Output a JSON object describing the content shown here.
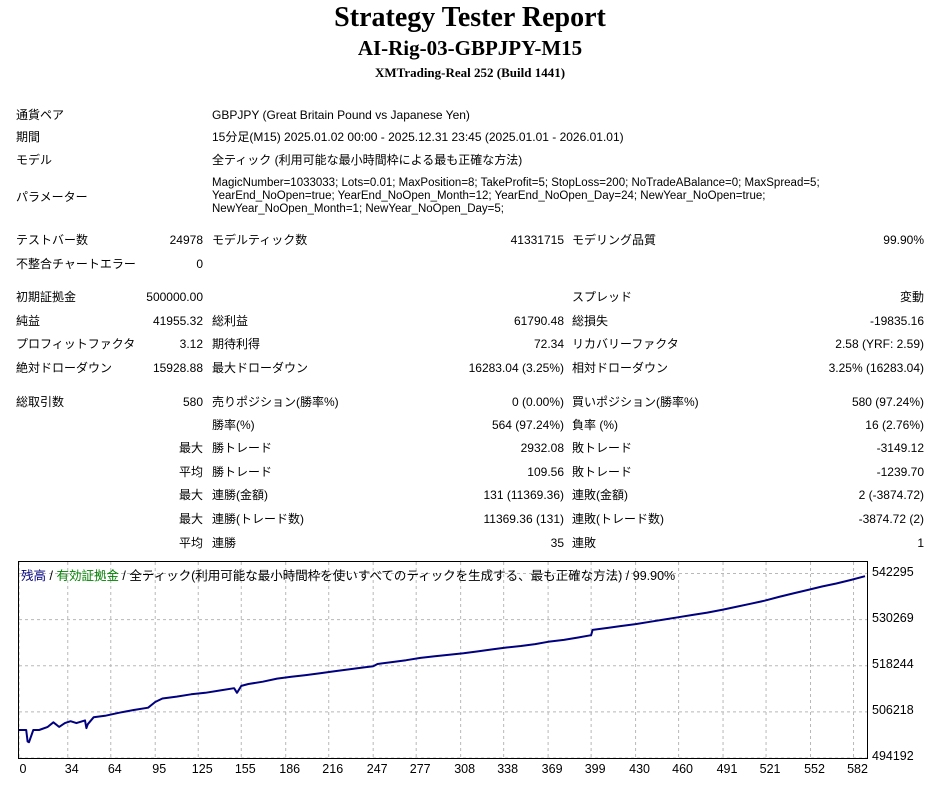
{
  "header": {
    "title": "Strategy Tester Report",
    "subtitle": "AI-Rig-03-GBPJPY-M15",
    "build": "XMTrading-Real 252 (Build 1441)"
  },
  "info": {
    "pair_label": "通貨ペア",
    "pair_value": "GBPJPY (Great Britain Pound vs Japanese Yen)",
    "period_label": "期間",
    "period_value": "15分足(M15) 2025.01.02 00:00 - 2025.12.31 23:45 (2025.01.01 - 2026.01.01)",
    "model_label": "モデル",
    "model_value": "全ティック (利用可能な最小時間枠による最も正確な方法)",
    "params_label": "パラメーター",
    "params_line1": "MagicNumber=1033033; Lots=0.01; MaxPosition=8; TakeProfit=5; StopLoss=200; NoTradeABalance=0; MaxSpread=5;",
    "params_line2": "YearEnd_NoOpen=true; YearEnd_NoOpen_Month=12; YearEnd_NoOpen_Day=24; NewYear_NoOpen=true;",
    "params_line3": "NewYear_NoOpen_Month=1; NewYear_NoOpen_Day=5;"
  },
  "stats": {
    "bars_label": "テストバー数",
    "bars": "24978",
    "ticks_label": "モデルティック数",
    "ticks": "41331715",
    "quality_label": "モデリング品質",
    "quality": "99.90%",
    "mismatch_label": "不整合チャートエラー",
    "mismatch": "0",
    "deposit_label": "初期証拠金",
    "deposit": "500000.00",
    "spread_label": "スプレッド",
    "spread": "変動",
    "net_label": "純益",
    "net": "41955.32",
    "gross_profit_label": "総利益",
    "gross_profit": "61790.48",
    "gross_loss_label": "総損失",
    "gross_loss": "-19835.16",
    "pf_label": "プロフィットファクタ",
    "pf": "3.12",
    "expected_label": "期待利得",
    "expected": "72.34",
    "recovery_label": "リカバリーファクタ",
    "recovery": "2.58 (YRF: 2.59)",
    "abs_dd_label": "絶対ドローダウン",
    "abs_dd": "15928.88",
    "max_dd_label": "最大ドローダウン",
    "max_dd": "16283.04 (3.25%)",
    "rel_dd_label": "相対ドローダウン",
    "rel_dd": "3.25% (16283.04)",
    "trades_label": "総取引数",
    "trades": "580",
    "short_label": "売りポジション(勝率%)",
    "short": "0 (0.00%)",
    "long_label": "買いポジション(勝率%)",
    "long": "580 (97.24%)",
    "win_pct_label": "勝率(%)",
    "win_pct": "564 (97.24%)",
    "loss_pct_label": "負率 (%)",
    "loss_pct": "16 (2.76%)",
    "max_word": "最大",
    "avg_word": "平均",
    "win_trade_label": "勝トレード",
    "largest_win": "2932.08",
    "loss_trade_label": "敗トレード",
    "largest_loss": "-3149.12",
    "avg_win": "109.56",
    "avg_loss": "-1239.70",
    "cons_win_amount_label": "連勝(金額)",
    "cons_win_amount": "131 (11369.36)",
    "cons_loss_amount_label": "連敗(金額)",
    "cons_loss_amount": "2 (-3874.72)",
    "cons_win_count_label": "連勝(トレード数)",
    "cons_win_count": "11369.36 (131)",
    "cons_loss_count_label": "連敗(トレード数)",
    "cons_loss_count": "-3874.72 (2)",
    "avg_cons_win_label": "連勝",
    "avg_cons_win": "35",
    "avg_cons_loss_label": "連敗",
    "avg_cons_loss": "1"
  },
  "chart_legend": {
    "balance": "残高",
    "sep1": " / ",
    "equity": "有効証拠金",
    "rest": " / 全ティック(利用可能な最小時間枠を使いすべてのティックを生成する、最も正確な方法) / 99.90%",
    "balance_color": "#000080",
    "equity_color": "#008000"
  },
  "chart_data": {
    "type": "line",
    "xlabel": "",
    "ylabel": "",
    "x_ticks": [
      "0",
      "34",
      "64",
      "95",
      "125",
      "155",
      "186",
      "216",
      "247",
      "277",
      "308",
      "338",
      "369",
      "399",
      "430",
      "460",
      "491",
      "521",
      "552",
      "582"
    ],
    "y_ticks": [
      "542295",
      "530269",
      "518244",
      "506218",
      "494192"
    ],
    "xlim": [
      0,
      590
    ],
    "ylim": [
      494192,
      545300
    ],
    "grid": true,
    "series": [
      {
        "color": "#000080",
        "x": [
          0,
          5,
          6,
          7,
          10,
          14,
          20,
          24,
          28,
          32,
          36,
          40,
          46,
          47,
          48,
          52,
          60,
          70,
          80,
          90,
          95,
          100,
          110,
          120,
          130,
          140,
          150,
          152,
          155,
          160,
          170,
          180,
          190,
          200,
          210,
          220,
          240,
          247,
          250,
          260,
          270,
          280,
          290,
          300,
          310,
          320,
          330,
          340,
          350,
          360,
          369,
          380,
          390,
          399,
          400,
          410,
          420,
          430,
          440,
          450,
          460,
          470,
          480,
          491,
          500,
          510,
          520,
          530,
          540,
          550,
          560,
          570,
          580,
          590
        ],
        "y": [
          501500,
          501500,
          498500,
          498300,
          501500,
          501500,
          502300,
          503500,
          502300,
          503300,
          503800,
          503300,
          504000,
          502000,
          503000,
          504800,
          505200,
          506000,
          506700,
          507300,
          508800,
          509700,
          510200,
          510800,
          511200,
          511800,
          512400,
          511200,
          513000,
          513500,
          514100,
          514900,
          515400,
          515800,
          516300,
          516800,
          517800,
          518100,
          518700,
          519200,
          519700,
          520300,
          520700,
          521100,
          521500,
          522000,
          522500,
          523000,
          523400,
          523900,
          524500,
          525000,
          525600,
          526200,
          527600,
          528100,
          528600,
          529100,
          529700,
          530300,
          530900,
          531500,
          532100,
          532900,
          533600,
          534400,
          535200,
          536200,
          537100,
          538000,
          538900,
          539700,
          540600,
          541600
        ]
      }
    ]
  }
}
